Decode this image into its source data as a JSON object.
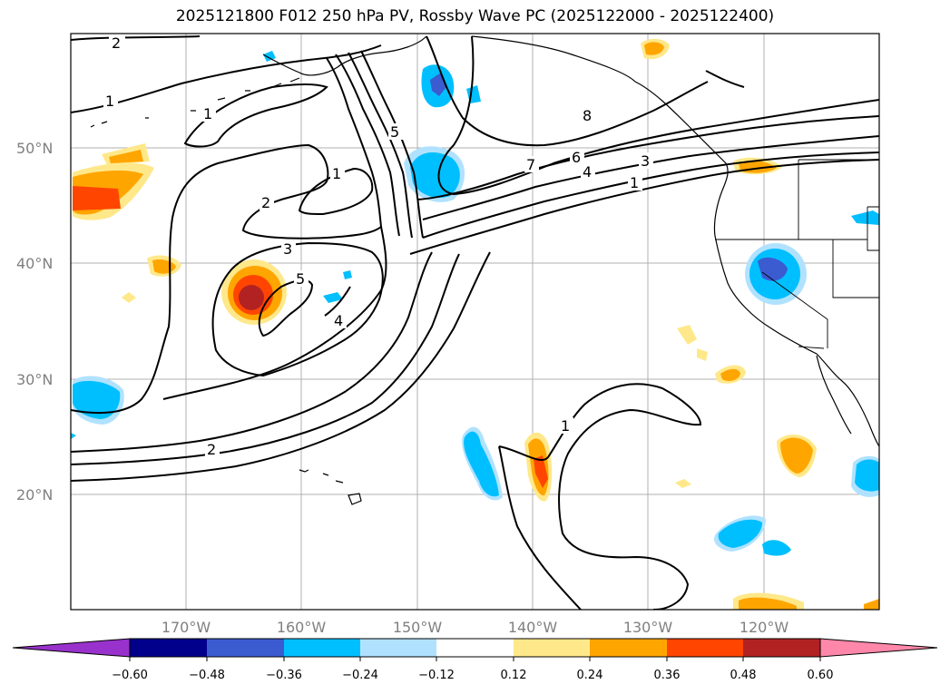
{
  "title": "2025121800 F012 250 hPa PV, Rossby Wave PC (2025122000 - 2025122400)",
  "map": {
    "lon_ticks": [
      "170°W",
      "160°W",
      "150°W",
      "140°W",
      "130°W",
      "120°W"
    ],
    "lat_ticks": [
      "50°N",
      "40°N",
      "30°N",
      "20°N"
    ],
    "contour_labels": [
      "2",
      "1",
      "1",
      "1",
      "5",
      "2",
      "3",
      "5",
      "4",
      "8",
      "7",
      "6",
      "4",
      "3",
      "1",
      "2",
      "1"
    ]
  },
  "colorbar": {
    "ticks": [
      "−0.60",
      "−0.48",
      "−0.36",
      "−0.24",
      "−0.12",
      "0.12",
      "0.24",
      "0.36",
      "0.48",
      "0.60"
    ],
    "colors": [
      "#9932cc",
      "#00008b",
      "#3b5bd1",
      "#00bfff",
      "#b0e2ff",
      "#ffffff",
      "#ffe88a",
      "#ffa500",
      "#ff4500",
      "#b22222",
      "#ff88aa"
    ]
  }
}
